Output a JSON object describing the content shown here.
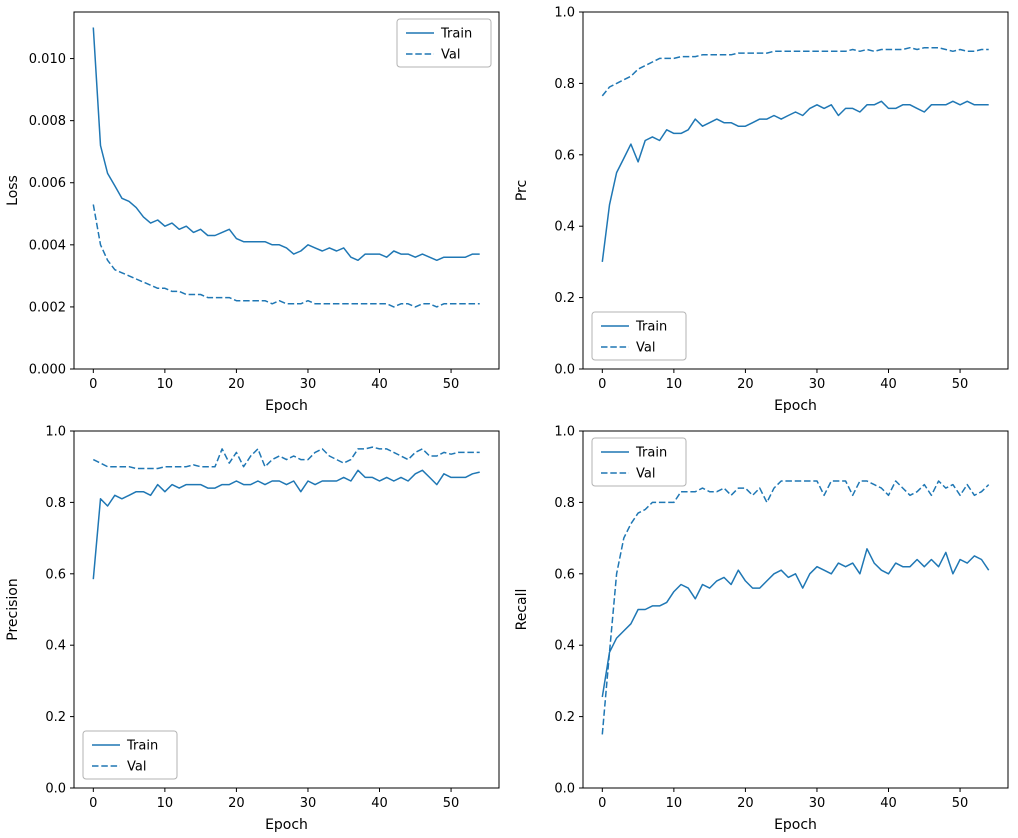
{
  "figure": {
    "background": "#ffffff",
    "line_color": "#1f77b4",
    "legend_border_color": "#b3b3b3",
    "text_color": "#000000"
  },
  "chart_data": [
    {
      "type": "line",
      "title": "",
      "xlabel": "Epoch",
      "ylabel": "Loss",
      "xlim": [
        -2.7,
        56.7
      ],
      "ylim": [
        0,
        0.0115
      ],
      "xticks": [
        0,
        10,
        20,
        30,
        40,
        50
      ],
      "yticks": [
        0.0,
        0.002,
        0.004,
        0.006,
        0.008,
        0.01
      ],
      "ytick_labels": [
        "0.000",
        "0.002",
        "0.004",
        "0.006",
        "0.008",
        "0.010"
      ],
      "grid": false,
      "legend_position": "upper-right",
      "series": [
        {
          "name": "Train",
          "style": "solid",
          "values": [
            0.011,
            0.0072,
            0.0063,
            0.0059,
            0.0055,
            0.0054,
            0.0052,
            0.0049,
            0.0047,
            0.0048,
            0.0046,
            0.0047,
            0.0045,
            0.0046,
            0.0044,
            0.0045,
            0.0043,
            0.0043,
            0.0044,
            0.0045,
            0.0042,
            0.0041,
            0.0041,
            0.0041,
            0.0041,
            0.004,
            0.004,
            0.0039,
            0.0037,
            0.0038,
            0.004,
            0.0039,
            0.0038,
            0.0039,
            0.0038,
            0.0039,
            0.0036,
            0.0035,
            0.0037,
            0.0037,
            0.0037,
            0.0036,
            0.0038,
            0.0037,
            0.0037,
            0.0036,
            0.0037,
            0.0036,
            0.0035,
            0.0036,
            0.0036,
            0.0036,
            0.0036,
            0.0037,
            0.0037
          ]
        },
        {
          "name": "Val",
          "style": "dashed",
          "values": [
            0.0053,
            0.004,
            0.0035,
            0.0032,
            0.0031,
            0.003,
            0.0029,
            0.0028,
            0.0027,
            0.0026,
            0.0026,
            0.0025,
            0.0025,
            0.0024,
            0.0024,
            0.0024,
            0.0023,
            0.0023,
            0.0023,
            0.0023,
            0.0022,
            0.0022,
            0.0022,
            0.0022,
            0.0022,
            0.0021,
            0.0022,
            0.0021,
            0.0021,
            0.0021,
            0.0022,
            0.0021,
            0.0021,
            0.0021,
            0.0021,
            0.0021,
            0.0021,
            0.0021,
            0.0021,
            0.0021,
            0.0021,
            0.0021,
            0.002,
            0.0021,
            0.0021,
            0.002,
            0.0021,
            0.0021,
            0.002,
            0.0021,
            0.0021,
            0.0021,
            0.0021,
            0.0021,
            0.0021
          ]
        }
      ]
    },
    {
      "type": "line",
      "title": "",
      "xlabel": "Epoch",
      "ylabel": "Prc",
      "xlim": [
        -2.7,
        56.7
      ],
      "ylim": [
        0,
        1.0
      ],
      "xticks": [
        0,
        10,
        20,
        30,
        40,
        50
      ],
      "yticks": [
        0.0,
        0.2,
        0.4,
        0.6,
        0.8,
        1.0
      ],
      "ytick_labels": [
        "0.0",
        "0.2",
        "0.4",
        "0.6",
        "0.8",
        "1.0"
      ],
      "grid": false,
      "legend_position": "lower-left",
      "series": [
        {
          "name": "Train",
          "style": "solid",
          "values": [
            0.3,
            0.46,
            0.55,
            0.59,
            0.63,
            0.58,
            0.64,
            0.65,
            0.64,
            0.67,
            0.66,
            0.66,
            0.67,
            0.7,
            0.68,
            0.69,
            0.7,
            0.69,
            0.69,
            0.68,
            0.68,
            0.69,
            0.7,
            0.7,
            0.71,
            0.7,
            0.71,
            0.72,
            0.71,
            0.73,
            0.74,
            0.73,
            0.74,
            0.71,
            0.73,
            0.73,
            0.72,
            0.74,
            0.74,
            0.75,
            0.73,
            0.73,
            0.74,
            0.74,
            0.73,
            0.72,
            0.74,
            0.74,
            0.74,
            0.75,
            0.74,
            0.75,
            0.74,
            0.74,
            0.74
          ]
        },
        {
          "name": "Val",
          "style": "dashed",
          "values": [
            0.765,
            0.79,
            0.8,
            0.81,
            0.82,
            0.84,
            0.85,
            0.86,
            0.87,
            0.87,
            0.87,
            0.875,
            0.875,
            0.875,
            0.88,
            0.88,
            0.88,
            0.88,
            0.88,
            0.885,
            0.885,
            0.885,
            0.885,
            0.885,
            0.89,
            0.89,
            0.89,
            0.89,
            0.89,
            0.89,
            0.89,
            0.89,
            0.89,
            0.89,
            0.89,
            0.895,
            0.89,
            0.895,
            0.89,
            0.895,
            0.895,
            0.895,
            0.895,
            0.9,
            0.895,
            0.9,
            0.9,
            0.9,
            0.895,
            0.89,
            0.895,
            0.89,
            0.89,
            0.895,
            0.895
          ]
        }
      ]
    },
    {
      "type": "line",
      "title": "",
      "xlabel": "Epoch",
      "ylabel": "Precision",
      "xlim": [
        -2.7,
        56.7
      ],
      "ylim": [
        0,
        1.0
      ],
      "xticks": [
        0,
        10,
        20,
        30,
        40,
        50
      ],
      "yticks": [
        0.0,
        0.2,
        0.4,
        0.6,
        0.8,
        1.0
      ],
      "ytick_labels": [
        "0.0",
        "0.2",
        "0.4",
        "0.6",
        "0.8",
        "1.0"
      ],
      "grid": false,
      "legend_position": "lower-left",
      "series": [
        {
          "name": "Train",
          "style": "solid",
          "values": [
            0.585,
            0.81,
            0.79,
            0.82,
            0.81,
            0.82,
            0.83,
            0.83,
            0.82,
            0.85,
            0.83,
            0.85,
            0.84,
            0.85,
            0.85,
            0.85,
            0.84,
            0.84,
            0.85,
            0.85,
            0.86,
            0.85,
            0.85,
            0.86,
            0.85,
            0.86,
            0.86,
            0.85,
            0.86,
            0.83,
            0.86,
            0.85,
            0.86,
            0.86,
            0.86,
            0.87,
            0.86,
            0.89,
            0.87,
            0.87,
            0.86,
            0.87,
            0.86,
            0.87,
            0.86,
            0.88,
            0.89,
            0.87,
            0.85,
            0.88,
            0.87,
            0.87,
            0.87,
            0.88,
            0.885
          ]
        },
        {
          "name": "Val",
          "style": "dashed",
          "values": [
            0.92,
            0.91,
            0.9,
            0.9,
            0.9,
            0.9,
            0.895,
            0.895,
            0.895,
            0.895,
            0.9,
            0.9,
            0.9,
            0.9,
            0.905,
            0.9,
            0.9,
            0.9,
            0.95,
            0.91,
            0.94,
            0.9,
            0.93,
            0.95,
            0.9,
            0.92,
            0.93,
            0.92,
            0.93,
            0.92,
            0.92,
            0.94,
            0.95,
            0.93,
            0.92,
            0.91,
            0.92,
            0.95,
            0.95,
            0.955,
            0.95,
            0.95,
            0.94,
            0.93,
            0.92,
            0.94,
            0.95,
            0.93,
            0.93,
            0.94,
            0.935,
            0.94,
            0.94,
            0.94,
            0.94
          ]
        }
      ]
    },
    {
      "type": "line",
      "title": "",
      "xlabel": "Epoch",
      "ylabel": "Recall",
      "xlim": [
        -2.7,
        56.7
      ],
      "ylim": [
        0,
        1.0
      ],
      "xticks": [
        0,
        10,
        20,
        30,
        40,
        50
      ],
      "yticks": [
        0.0,
        0.2,
        0.4,
        0.6,
        0.8,
        1.0
      ],
      "ytick_labels": [
        "0.0",
        "0.2",
        "0.4",
        "0.6",
        "0.8",
        "1.0"
      ],
      "grid": false,
      "legend_position": "upper-left",
      "series": [
        {
          "name": "Train",
          "style": "solid",
          "values": [
            0.255,
            0.38,
            0.42,
            0.44,
            0.46,
            0.5,
            0.5,
            0.51,
            0.51,
            0.52,
            0.55,
            0.57,
            0.56,
            0.53,
            0.57,
            0.56,
            0.58,
            0.59,
            0.57,
            0.61,
            0.58,
            0.56,
            0.56,
            0.58,
            0.6,
            0.61,
            0.59,
            0.6,
            0.56,
            0.6,
            0.62,
            0.61,
            0.6,
            0.63,
            0.62,
            0.63,
            0.6,
            0.67,
            0.63,
            0.61,
            0.6,
            0.63,
            0.62,
            0.62,
            0.64,
            0.62,
            0.64,
            0.62,
            0.66,
            0.6,
            0.64,
            0.63,
            0.65,
            0.64,
            0.61
          ]
        },
        {
          "name": "Val",
          "style": "dashed",
          "values": [
            0.15,
            0.38,
            0.6,
            0.7,
            0.74,
            0.77,
            0.78,
            0.8,
            0.8,
            0.8,
            0.8,
            0.83,
            0.83,
            0.83,
            0.84,
            0.83,
            0.83,
            0.84,
            0.82,
            0.84,
            0.84,
            0.82,
            0.84,
            0.8,
            0.84,
            0.86,
            0.86,
            0.86,
            0.86,
            0.86,
            0.86,
            0.82,
            0.86,
            0.86,
            0.86,
            0.82,
            0.86,
            0.86,
            0.85,
            0.84,
            0.82,
            0.86,
            0.84,
            0.82,
            0.83,
            0.85,
            0.82,
            0.86,
            0.84,
            0.85,
            0.82,
            0.85,
            0.82,
            0.83,
            0.85
          ]
        }
      ]
    }
  ]
}
